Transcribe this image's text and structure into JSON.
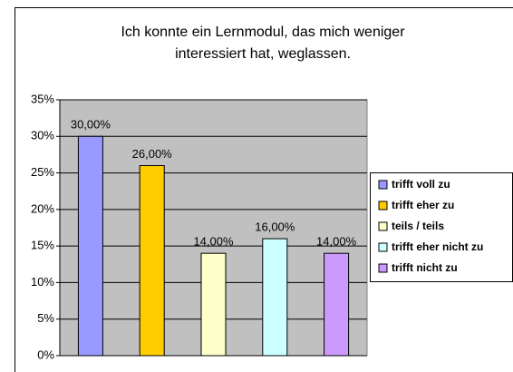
{
  "chart_data": {
    "type": "bar",
    "title": [
      "Ich konnte ein Lernmodul, das mich weniger",
      "interessiert hat, weglassen."
    ],
    "series": [
      {
        "name": "trifft voll zu",
        "color": "#9999ff",
        "values": [
          30
        ],
        "value_labels": [
          "30,00%"
        ]
      },
      {
        "name": "trifft eher zu",
        "color": "#ffcc00",
        "values": [
          26
        ],
        "value_labels": [
          "26,00%"
        ]
      },
      {
        "name": "teils / teils",
        "color": "#ffffcc",
        "values": [
          14
        ],
        "value_labels": [
          "14,00%"
        ]
      },
      {
        "name": "trifft eher nicht zu",
        "color": "#ccffff",
        "values": [
          16
        ],
        "value_labels": [
          "16,00%"
        ]
      },
      {
        "name": "trifft nicht zu",
        "color": "#cc99ff",
        "values": [
          14
        ],
        "value_labels": [
          "14,00%"
        ]
      }
    ],
    "ylim": [
      0,
      35
    ],
    "yticks": [
      {
        "value": 0,
        "label": "0%"
      },
      {
        "value": 5,
        "label": "5%"
      },
      {
        "value": 10,
        "label": "10%"
      },
      {
        "value": 15,
        "label": "15%"
      },
      {
        "value": 20,
        "label": "20%"
      },
      {
        "value": 25,
        "label": "25%"
      },
      {
        "value": 30,
        "label": "30%"
      },
      {
        "value": 35,
        "label": "35%"
      }
    ],
    "grid": true,
    "plot_background": "#c0c0c0",
    "legend": "right"
  }
}
